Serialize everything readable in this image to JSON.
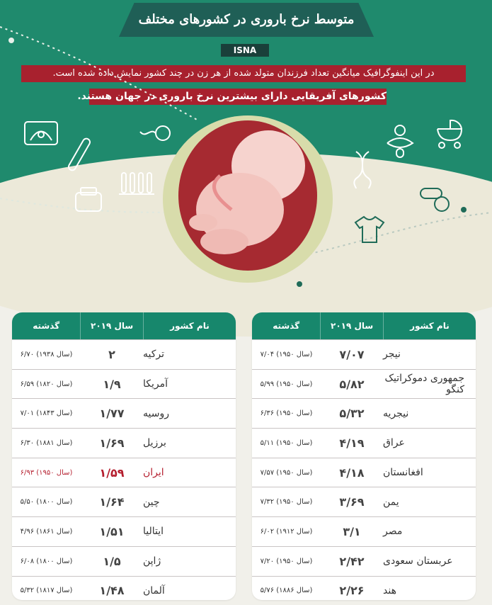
{
  "header": {
    "title": "متوسط نرخ باروری در کشورهای مختلف",
    "badge": "ISNA",
    "intro_line_1": "در این اینفوگرافیک میانگین تعداد فرزندان متولد شده از هر زن در چند کشور نمایش داده شده است.",
    "intro_line_2": "کشورهای آفریقایی دارای بیشترین نرخ باروری در جهان هستند."
  },
  "columns": {
    "country": "نام کشور",
    "year_2019": "سال ۲۰۱۹",
    "past": "گذشته"
  },
  "right_table": [
    {
      "country": "نیجر",
      "rate": "۷/۰۷",
      "past": "۷/۰۴ (سال ۱۹۵۰)"
    },
    {
      "country": "جمهوری دموکراتیک کنگو",
      "rate": "۵/۸۲",
      "past": "۵/۹۹ (سال ۱۹۵۰)"
    },
    {
      "country": "نیجریه",
      "rate": "۵/۳۲",
      "past": "۶/۳۶ (سال ۱۹۵۰)"
    },
    {
      "country": "عراق",
      "rate": "۴/۱۹",
      "past": "۵/۱۱ (سال ۱۹۵۰)"
    },
    {
      "country": "افغانستان",
      "rate": "۴/۱۸",
      "past": "۷/۵۷ (سال ۱۹۵۰)"
    },
    {
      "country": "یمن",
      "rate": "۳/۶۹",
      "past": "۷/۳۲ (سال ۱۹۵۰)"
    },
    {
      "country": "مصر",
      "rate": "۳/۱",
      "past": "۶/۰۲ (سال ۱۹۱۲)"
    },
    {
      "country": "عربستان سعودی",
      "rate": "۲/۴۲",
      "past": "۷/۲۰ (سال ۱۹۵۰)"
    },
    {
      "country": "هند",
      "rate": "۲/۲۶",
      "past": "۵/۷۶ (سال ۱۸۸۶)"
    }
  ],
  "left_table": [
    {
      "country": "ترکیه",
      "rate": "۲",
      "past": "۶/۷۰ (سال ۱۹۳۸)"
    },
    {
      "country": "آمریکا",
      "rate": "۱/۹",
      "past": "۶/۵۹ (سال ۱۸۲۰)"
    },
    {
      "country": "روسیه",
      "rate": "۱/۷۷",
      "past": "۷/۰۱ (سال ۱۸۴۳)"
    },
    {
      "country": "برزیل",
      "rate": "۱/۶۹",
      "past": "۶/۳۰ (سال ۱۸۸۱)"
    },
    {
      "country": "ایران",
      "rate": "۱/۵۹",
      "past": "۶/۹۳ (سال ۱۹۵۰)",
      "highlight": true
    },
    {
      "country": "چین",
      "rate": "۱/۶۴",
      "past": "۵/۵۰ (سال ۱۸۰۰)"
    },
    {
      "country": "ایتالیا",
      "rate": "۱/۵۱",
      "past": "۴/۹۶ (سال ۱۸۶۱)"
    },
    {
      "country": "ژاپن",
      "rate": "۱/۵",
      "past": "۶/۰۸ (سال ۱۸۰۰)"
    },
    {
      "country": "آلمان",
      "rate": "۱/۴۸",
      "past": "۵/۳۲ (سال ۱۸۱۷)"
    }
  ],
  "colors": {
    "green": "#1f8a6d",
    "dark_green": "#1f5f56",
    "header_green": "#17876c",
    "red": "#a8212e",
    "highlight_red": "#b51f2f",
    "cream": "#ece9d9"
  },
  "icons": [
    "ultrasound-icon",
    "pregnancy-test-icon",
    "scale-icon",
    "test-tubes-icon",
    "sperm-icon",
    "pacifier-icon",
    "stroller-icon",
    "dna-icon",
    "baby-onesie-icon",
    "pills-icon",
    "fetus-illustration"
  ]
}
